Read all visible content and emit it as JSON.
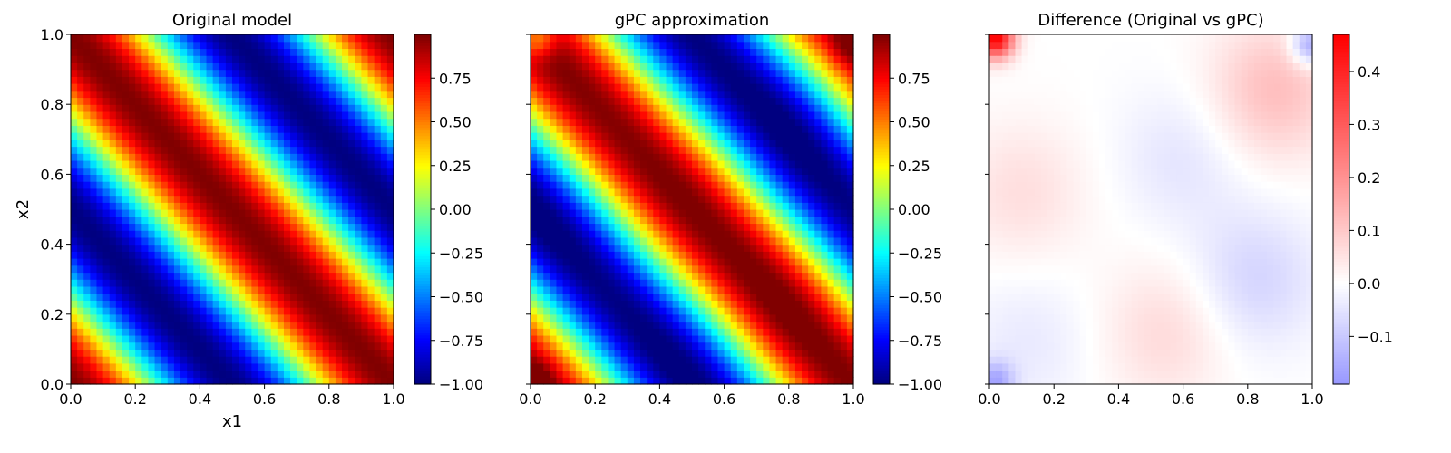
{
  "chart_data": [
    {
      "type": "heatmap",
      "title": "Original model",
      "xlabel": "x1",
      "ylabel": "x2",
      "x_range": [
        0,
        1
      ],
      "y_range": [
        0,
        1
      ],
      "x_ticks": [
        "0.0",
        "0.2",
        "0.4",
        "0.6",
        "0.8",
        "1.0"
      ],
      "y_ticks": [
        "0.0",
        "0.2",
        "0.4",
        "0.6",
        "0.8",
        "1.0"
      ],
      "show_y_tick_labels": true,
      "colormap": "jet",
      "grid_size": 50,
      "function": "sin(2*pi*(x1 + x2) + pi/2)",
      "colorbar": {
        "range": [
          -1.0,
          1.0
        ],
        "ticks": [
          {
            "value": 0.75,
            "label": "0.75"
          },
          {
            "value": 0.5,
            "label": "0.50"
          },
          {
            "value": 0.25,
            "label": "0.25"
          },
          {
            "value": 0.0,
            "label": "0.00"
          },
          {
            "value": -0.25,
            "label": "−0.25"
          },
          {
            "value": -0.5,
            "label": "−0.50"
          },
          {
            "value": -0.75,
            "label": "−0.75"
          },
          {
            "value": -1.0,
            "label": "−1.00"
          }
        ]
      }
    },
    {
      "type": "heatmap",
      "title": "gPC approximation",
      "xlabel": "",
      "ylabel": "",
      "x_range": [
        0,
        1
      ],
      "y_range": [
        0,
        1
      ],
      "x_ticks": [
        "0.0",
        "0.2",
        "0.4",
        "0.6",
        "0.8",
        "1.0"
      ],
      "y_ticks": [
        "",
        "",
        "",
        "",
        "",
        ""
      ],
      "show_y_tick_labels": false,
      "colormap": "jet",
      "grid_size": 50,
      "function": "sin(2*pi*(x1 + x2) + pi/2) minus difference field",
      "colorbar": {
        "range": [
          -1.0,
          1.0
        ],
        "ticks": [
          {
            "value": 0.75,
            "label": "0.75"
          },
          {
            "value": 0.5,
            "label": "0.50"
          },
          {
            "value": 0.25,
            "label": "0.25"
          },
          {
            "value": 0.0,
            "label": "0.00"
          },
          {
            "value": -0.25,
            "label": "−0.25"
          },
          {
            "value": -0.5,
            "label": "−0.50"
          },
          {
            "value": -0.75,
            "label": "−0.75"
          },
          {
            "value": -1.0,
            "label": "−1.00"
          }
        ]
      }
    },
    {
      "type": "heatmap",
      "title": "Difference (Original vs gPC)",
      "xlabel": "",
      "ylabel": "",
      "x_range": [
        0,
        1
      ],
      "y_range": [
        0,
        1
      ],
      "x_ticks": [
        "0.0",
        "0.2",
        "0.4",
        "0.6",
        "0.8",
        "1.0"
      ],
      "y_ticks": [
        "",
        "",
        "",
        "",
        "",
        ""
      ],
      "show_y_tick_labels": false,
      "colormap": "bwr",
      "grid_size": 50,
      "colorbar": {
        "range": [
          -0.19,
          0.47
        ],
        "ticks": [
          {
            "value": 0.4,
            "label": "0.4"
          },
          {
            "value": 0.3,
            "label": "0.3"
          },
          {
            "value": 0.2,
            "label": "0.2"
          },
          {
            "value": 0.1,
            "label": "0.1"
          },
          {
            "value": 0.0,
            "label": "0.0"
          },
          {
            "value": -0.1,
            "label": "−0.1"
          }
        ]
      },
      "features": [
        {
          "x": 0.02,
          "y": 0.99,
          "value": 0.47
        },
        {
          "x": 0.88,
          "y": 0.84,
          "value": 0.12
        },
        {
          "x": 0.1,
          "y": 0.55,
          "value": 0.06
        },
        {
          "x": 0.55,
          "y": 0.15,
          "value": 0.07
        },
        {
          "x": 0.6,
          "y": 0.65,
          "value": -0.05
        },
        {
          "x": 0.82,
          "y": 0.3,
          "value": -0.08
        },
        {
          "x": 0.12,
          "y": 0.12,
          "value": -0.04
        },
        {
          "x": 0.99,
          "y": 0.97,
          "value": -0.19
        },
        {
          "x": 0.02,
          "y": 0.01,
          "value": -0.15
        }
      ]
    }
  ]
}
